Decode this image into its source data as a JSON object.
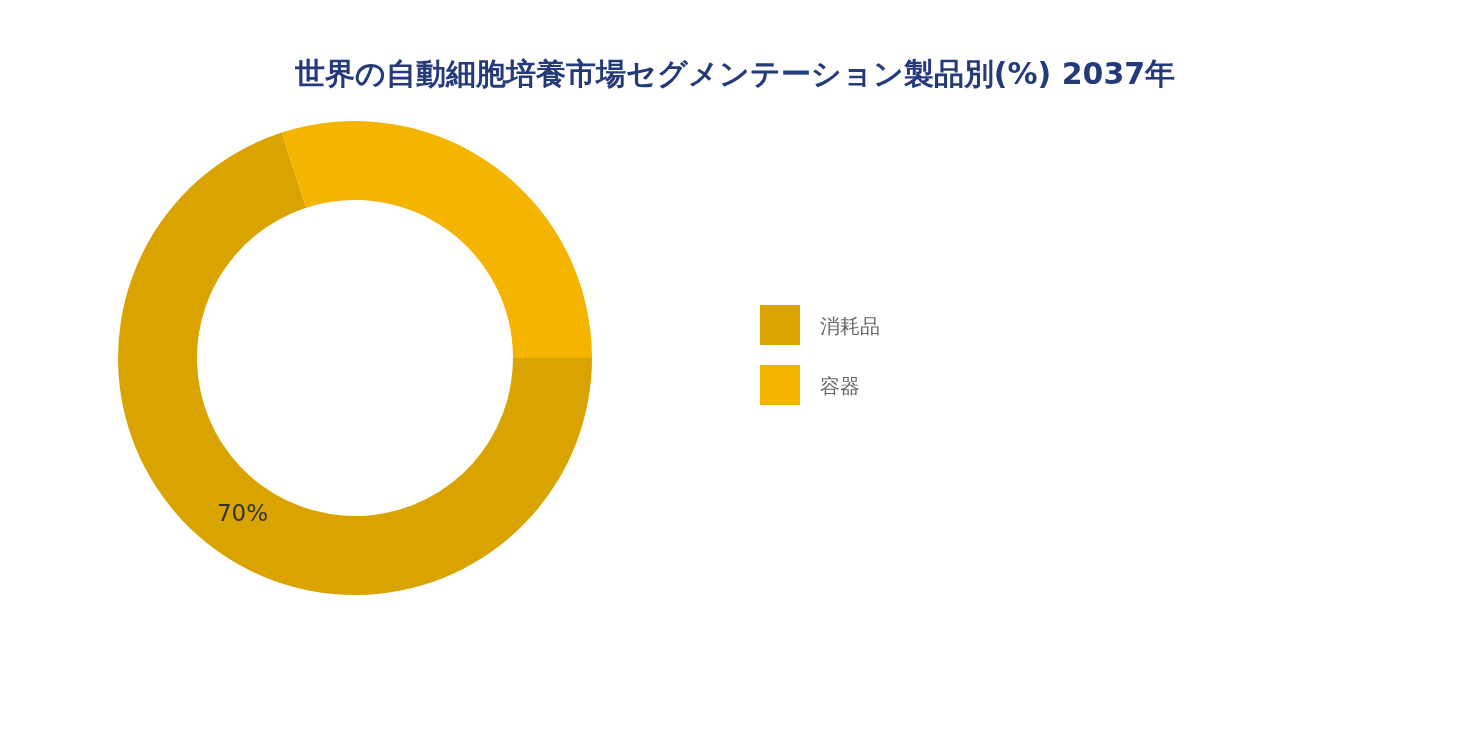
{
  "chart_data": {
    "type": "donut",
    "title": "世界の自動細胞培養市場セグメンテーション製品別(%) 2037年",
    "categories": [
      "消耗品",
      "容器"
    ],
    "values": [
      70,
      30
    ],
    "colors": [
      "#daa400",
      "#f4b400"
    ],
    "value_labels": [
      "70%",
      null
    ],
    "legend": "right"
  }
}
